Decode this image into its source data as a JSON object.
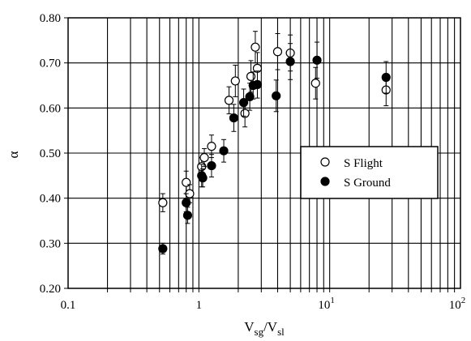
{
  "chart_data": {
    "type": "scatter",
    "xlabel": "V",
    "xlabel_sub1": "sg",
    "xlabel_mid": "/V",
    "xlabel_sub2": "sl",
    "ylabel": "α",
    "xscale": "log",
    "xlim": [
      0.1,
      100
    ],
    "ylim": [
      0.2,
      0.8
    ],
    "grid": true,
    "legend_position": "right",
    "x_tick_labels": [
      {
        "value": 0.1,
        "base": "0.1",
        "exp": ""
      },
      {
        "value": 1,
        "base": "1",
        "exp": ""
      },
      {
        "value": 10,
        "base": "10",
        "exp": "1"
      },
      {
        "value": 100,
        "base": "10",
        "exp": "2"
      }
    ],
    "y_tick_labels": [
      "0.20",
      "0.30",
      "0.40",
      "0.50",
      "0.60",
      "0.70",
      "0.80"
    ],
    "y_tick_values": [
      0.2,
      0.3,
      0.4,
      0.5,
      0.6,
      0.7,
      0.8
    ],
    "series": [
      {
        "name": "S Flight",
        "marker": "open-circle",
        "points": [
          {
            "x": 0.53,
            "y": 0.39,
            "err": 0.02
          },
          {
            "x": 0.8,
            "y": 0.435,
            "err": 0.025
          },
          {
            "x": 0.85,
            "y": 0.41,
            "err": 0.02
          },
          {
            "x": 1.05,
            "y": 0.47,
            "err": 0.02
          },
          {
            "x": 1.1,
            "y": 0.49,
            "err": 0.02
          },
          {
            "x": 1.25,
            "y": 0.515,
            "err": 0.025
          },
          {
            "x": 1.7,
            "y": 0.617,
            "err": 0.03
          },
          {
            "x": 1.9,
            "y": 0.66,
            "err": 0.035
          },
          {
            "x": 2.25,
            "y": 0.588,
            "err": 0.03
          },
          {
            "x": 2.5,
            "y": 0.67,
            "err": 0.035
          },
          {
            "x": 2.7,
            "y": 0.735,
            "err": 0.035
          },
          {
            "x": 2.8,
            "y": 0.688,
            "err": 0.035
          },
          {
            "x": 4.0,
            "y": 0.725,
            "err": 0.04
          },
          {
            "x": 5.0,
            "y": 0.722,
            "err": 0.04
          },
          {
            "x": 7.8,
            "y": 0.655,
            "err": 0.035
          },
          {
            "x": 27,
            "y": 0.64,
            "err": 0.035
          }
        ]
      },
      {
        "name": "S Ground",
        "marker": "filled-circle",
        "points": [
          {
            "x": 0.53,
            "y": 0.288,
            "err": 0.012
          },
          {
            "x": 0.8,
            "y": 0.39,
            "err": 0.02
          },
          {
            "x": 0.82,
            "y": 0.362,
            "err": 0.018
          },
          {
            "x": 1.05,
            "y": 0.45,
            "err": 0.025
          },
          {
            "x": 1.07,
            "y": 0.445,
            "err": 0.02
          },
          {
            "x": 1.25,
            "y": 0.472,
            "err": 0.025
          },
          {
            "x": 1.55,
            "y": 0.505,
            "err": 0.025
          },
          {
            "x": 1.85,
            "y": 0.578,
            "err": 0.03
          },
          {
            "x": 2.2,
            "y": 0.612,
            "err": 0.03
          },
          {
            "x": 2.45,
            "y": 0.625,
            "err": 0.03
          },
          {
            "x": 2.6,
            "y": 0.65,
            "err": 0.03
          },
          {
            "x": 2.8,
            "y": 0.652,
            "err": 0.03
          },
          {
            "x": 3.9,
            "y": 0.627,
            "err": 0.035
          },
          {
            "x": 5.0,
            "y": 0.703,
            "err": 0.04
          },
          {
            "x": 8.0,
            "y": 0.706,
            "err": 0.04
          },
          {
            "x": 27,
            "y": 0.668,
            "err": 0.035
          }
        ]
      }
    ]
  }
}
